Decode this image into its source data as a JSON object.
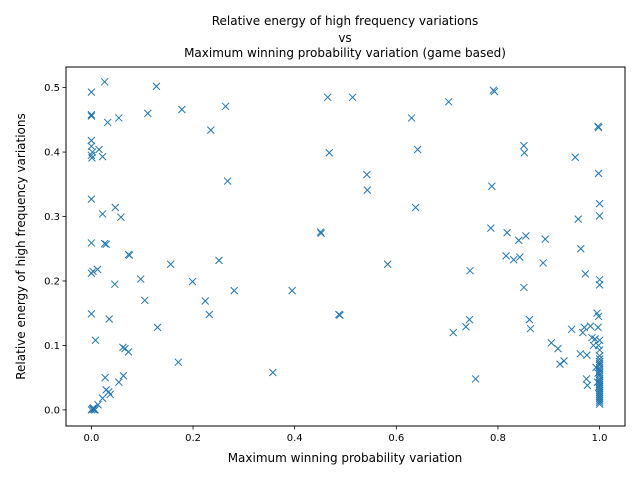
{
  "chart_data": {
    "type": "scatter",
    "title_lines": [
      "Relative energy of high frequency variations",
      "vs",
      "Maximum winning probability variation (game based)"
    ],
    "xlabel": "Maximum winning probability variation",
    "ylabel": "Relative energy of high frequency variations",
    "xlim": [
      -0.05,
      1.05
    ],
    "ylim": [
      -0.025,
      0.532
    ],
    "x_ticks": [
      "0.0",
      "0.2",
      "0.4",
      "0.6",
      "0.8",
      "1.0"
    ],
    "y_ticks": [
      "0.0",
      "0.1",
      "0.2",
      "0.3",
      "0.4",
      "0.5"
    ],
    "marker": "x",
    "color": "#1f77b4",
    "grid": false,
    "legend": "none",
    "points": [
      [
        0.0,
        0.493
      ],
      [
        0.026,
        0.509
      ],
      [
        0.0,
        0.458
      ],
      [
        0.0,
        0.456
      ],
      [
        0.032,
        0.446
      ],
      [
        0.054,
        0.453
      ],
      [
        0.111,
        0.46
      ],
      [
        0.128,
        0.502
      ],
      [
        0.178,
        0.466
      ],
      [
        0.264,
        0.471
      ],
      [
        0.0,
        0.418
      ],
      [
        0.0,
        0.409
      ],
      [
        0.002,
        0.4
      ],
      [
        0.0,
        0.395
      ],
      [
        0.001,
        0.391
      ],
      [
        0.022,
        0.393
      ],
      [
        0.015,
        0.404
      ],
      [
        0.235,
        0.434
      ],
      [
        0.268,
        0.355
      ],
      [
        0.0,
        0.327
      ],
      [
        0.022,
        0.304
      ],
      [
        0.047,
        0.314
      ],
      [
        0.058,
        0.299
      ],
      [
        0.0,
        0.259
      ],
      [
        0.026,
        0.258
      ],
      [
        0.029,
        0.257
      ],
      [
        0.073,
        0.241
      ],
      [
        0.075,
        0.24
      ],
      [
        0.0,
        0.212
      ],
      [
        0.003,
        0.215
      ],
      [
        0.012,
        0.218
      ],
      [
        0.046,
        0.195
      ],
      [
        0.097,
        0.203
      ],
      [
        0.156,
        0.226
      ],
      [
        0.199,
        0.199
      ],
      [
        0.251,
        0.232
      ],
      [
        0.105,
        0.17
      ],
      [
        0.224,
        0.169
      ],
      [
        0.281,
        0.185
      ],
      [
        0.0,
        0.149
      ],
      [
        0.035,
        0.141
      ],
      [
        0.13,
        0.128
      ],
      [
        0.232,
        0.148
      ],
      [
        0.008,
        0.108
      ],
      [
        0.062,
        0.097
      ],
      [
        0.066,
        0.095
      ],
      [
        0.073,
        0.09
      ],
      [
        0.171,
        0.074
      ],
      [
        0.027,
        0.05
      ],
      [
        0.063,
        0.053
      ],
      [
        0.054,
        0.043
      ],
      [
        0.029,
        0.031
      ],
      [
        0.034,
        0.028
      ],
      [
        0.037,
        0.024
      ],
      [
        0.022,
        0.018
      ],
      [
        0.013,
        0.008
      ],
      [
        0.004,
        0.003
      ],
      [
        0.002,
        0.002
      ],
      [
        0.005,
        0.001
      ],
      [
        0.0,
        0.0
      ],
      [
        0.007,
        0.0
      ],
      [
        0.003,
        0.001
      ],
      [
        0.357,
        0.058
      ],
      [
        0.395,
        0.185
      ],
      [
        0.451,
        0.276
      ],
      [
        0.452,
        0.274
      ],
      [
        0.487,
        0.148
      ],
      [
        0.489,
        0.147
      ],
      [
        0.465,
        0.485
      ],
      [
        0.514,
        0.485
      ],
      [
        0.468,
        0.399
      ],
      [
        0.542,
        0.365
      ],
      [
        0.543,
        0.341
      ],
      [
        0.583,
        0.226
      ],
      [
        0.63,
        0.453
      ],
      [
        0.642,
        0.404
      ],
      [
        0.638,
        0.314
      ],
      [
        0.703,
        0.478
      ],
      [
        0.712,
        0.12
      ],
      [
        0.737,
        0.129
      ],
      [
        0.744,
        0.14
      ],
      [
        0.745,
        0.216
      ],
      [
        0.756,
        0.048
      ],
      [
        0.791,
        0.496
      ],
      [
        0.793,
        0.494
      ],
      [
        0.788,
        0.347
      ],
      [
        0.786,
        0.282
      ],
      [
        0.818,
        0.275
      ],
      [
        0.816,
        0.239
      ],
      [
        0.831,
        0.233
      ],
      [
        0.843,
        0.237
      ],
      [
        0.841,
        0.263
      ],
      [
        0.855,
        0.27
      ],
      [
        0.851,
        0.41
      ],
      [
        0.852,
        0.399
      ],
      [
        0.851,
        0.19
      ],
      [
        0.862,
        0.14
      ],
      [
        0.864,
        0.126
      ],
      [
        0.889,
        0.228
      ],
      [
        0.893,
        0.265
      ],
      [
        0.905,
        0.104
      ],
      [
        0.918,
        0.095
      ],
      [
        0.922,
        0.071
      ],
      [
        0.93,
        0.076
      ],
      [
        0.945,
        0.125
      ],
      [
        0.952,
        0.392
      ],
      [
        0.958,
        0.296
      ],
      [
        0.962,
        0.087
      ],
      [
        0.963,
        0.25
      ],
      [
        0.967,
        0.12
      ],
      [
        0.97,
        0.128
      ],
      [
        0.972,
        0.211
      ],
      [
        0.975,
        0.085
      ],
      [
        0.974,
        0.048
      ],
      [
        0.976,
        0.038
      ],
      [
        0.982,
        0.13
      ],
      [
        0.985,
        0.112
      ],
      [
        0.988,
        0.1
      ],
      [
        0.991,
        0.11
      ],
      [
        0.993,
        0.066
      ],
      [
        0.995,
        0.15
      ],
      [
        0.997,
        0.44
      ],
      [
        0.998,
        0.438
      ],
      [
        0.998,
        0.367
      ],
      [
        1.0,
        0.32
      ],
      [
        1.0,
        0.301
      ],
      [
        1.0,
        0.202
      ],
      [
        1.0,
        0.194
      ],
      [
        0.998,
        0.145
      ],
      [
        0.997,
        0.128
      ],
      [
        1.0,
        0.108
      ],
      [
        0.998,
        0.1
      ],
      [
        1.0,
        0.093
      ],
      [
        1.0,
        0.084
      ],
      [
        1.0,
        0.079
      ],
      [
        1.0,
        0.075
      ],
      [
        1.0,
        0.072
      ],
      [
        1.0,
        0.069
      ],
      [
        1.0,
        0.065
      ],
      [
        1.0,
        0.062
      ],
      [
        1.0,
        0.058
      ],
      [
        1.0,
        0.055
      ],
      [
        1.0,
        0.052
      ],
      [
        1.0,
        0.048
      ],
      [
        1.0,
        0.045
      ],
      [
        1.0,
        0.042
      ],
      [
        1.0,
        0.039
      ],
      [
        1.0,
        0.036
      ],
      [
        1.0,
        0.033
      ],
      [
        1.0,
        0.03
      ],
      [
        1.0,
        0.027
      ],
      [
        1.0,
        0.024
      ],
      [
        1.0,
        0.021
      ],
      [
        1.0,
        0.018
      ],
      [
        1.0,
        0.015
      ],
      [
        1.0,
        0.012
      ],
      [
        1.0,
        0.009
      ],
      [
        0.996,
        0.043
      ],
      [
        0.997,
        0.057
      ],
      [
        0.998,
        0.035
      ]
    ]
  }
}
